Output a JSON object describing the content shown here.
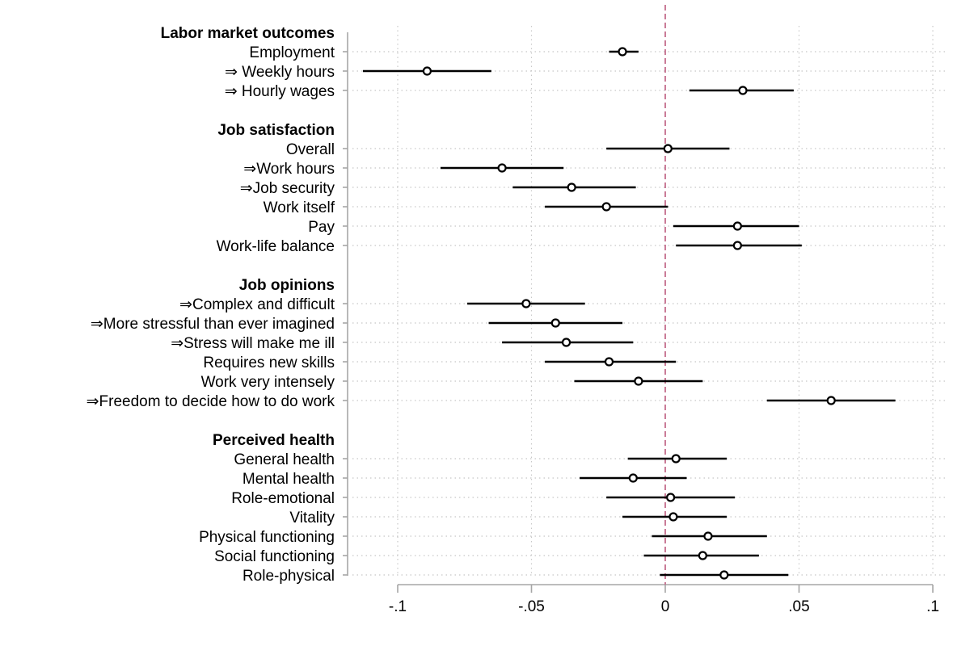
{
  "chart_data": {
    "type": "scatter",
    "title": "",
    "xlabel": "",
    "ylabel": "",
    "xlim": [
      -0.1,
      0.1
    ],
    "x_ticks": [
      {
        "value": -0.1,
        "label": "-.1"
      },
      {
        "value": -0.05,
        "label": "-.05"
      },
      {
        "value": 0,
        "label": "0"
      },
      {
        "value": 0.05,
        "label": ".05"
      },
      {
        "value": 0.1,
        "label": ".1"
      }
    ],
    "reference_line": {
      "x": 0,
      "color": "#c46e8c",
      "style": "dashed"
    },
    "grid": "vertical and horizontal dotted",
    "marker": "hollow circle",
    "rows": [
      {
        "kind": "header",
        "label": "Labor market outcomes"
      },
      {
        "kind": "item",
        "label": "Employment",
        "estimate": -0.016,
        "ci": [
          -0.021,
          -0.01
        ]
      },
      {
        "kind": "item",
        "label": "⇒ Weekly hours",
        "estimate": -0.089,
        "ci": [
          -0.113,
          -0.065
        ]
      },
      {
        "kind": "item",
        "label": "⇒ Hourly wages",
        "estimate": 0.029,
        "ci": [
          0.009,
          0.048
        ]
      },
      {
        "kind": "gap"
      },
      {
        "kind": "header",
        "label": "Job satisfaction"
      },
      {
        "kind": "item",
        "label": "Overall",
        "estimate": 0.001,
        "ci": [
          -0.022,
          0.024
        ]
      },
      {
        "kind": "item",
        "label": "⇒Work hours",
        "estimate": -0.061,
        "ci": [
          -0.084,
          -0.038
        ]
      },
      {
        "kind": "item",
        "label": "⇒Job security",
        "estimate": -0.035,
        "ci": [
          -0.057,
          -0.011
        ]
      },
      {
        "kind": "item",
        "label": "Work itself",
        "estimate": -0.022,
        "ci": [
          -0.045,
          0.001
        ]
      },
      {
        "kind": "item",
        "label": "Pay",
        "estimate": 0.027,
        "ci": [
          0.003,
          0.05
        ]
      },
      {
        "kind": "item",
        "label": "Work-life balance",
        "estimate": 0.027,
        "ci": [
          0.004,
          0.051
        ]
      },
      {
        "kind": "gap"
      },
      {
        "kind": "header",
        "label": "Job opinions"
      },
      {
        "kind": "item",
        "label": "⇒Complex and difficult",
        "estimate": -0.052,
        "ci": [
          -0.074,
          -0.03
        ]
      },
      {
        "kind": "item",
        "label": "⇒More stressful than ever imagined",
        "estimate": -0.041,
        "ci": [
          -0.066,
          -0.016
        ]
      },
      {
        "kind": "item",
        "label": "⇒Stress will make me ill",
        "estimate": -0.037,
        "ci": [
          -0.061,
          -0.012
        ]
      },
      {
        "kind": "item",
        "label": "Requires new skills",
        "estimate": -0.021,
        "ci": [
          -0.045,
          0.004
        ]
      },
      {
        "kind": "item",
        "label": "Work very intensely",
        "estimate": -0.01,
        "ci": [
          -0.034,
          0.014
        ]
      },
      {
        "kind": "item",
        "label": "⇒Freedom to decide how to do work",
        "estimate": 0.062,
        "ci": [
          0.038,
          0.086
        ]
      },
      {
        "kind": "gap"
      },
      {
        "kind": "header",
        "label": "Perceived health"
      },
      {
        "kind": "item",
        "label": "General health",
        "estimate": 0.004,
        "ci": [
          -0.014,
          0.023
        ]
      },
      {
        "kind": "item",
        "label": "Mental health",
        "estimate": -0.012,
        "ci": [
          -0.032,
          0.008
        ]
      },
      {
        "kind": "item",
        "label": "Role-emotional",
        "estimate": 0.002,
        "ci": [
          -0.022,
          0.026
        ]
      },
      {
        "kind": "item",
        "label": "Vitality",
        "estimate": 0.003,
        "ci": [
          -0.016,
          0.023
        ]
      },
      {
        "kind": "item",
        "label": "Physical functioning",
        "estimate": 0.016,
        "ci": [
          -0.005,
          0.038
        ]
      },
      {
        "kind": "item",
        "label": "Social functioning",
        "estimate": 0.014,
        "ci": [
          -0.008,
          0.035
        ]
      },
      {
        "kind": "item",
        "label": "Role-physical",
        "estimate": 0.022,
        "ci": [
          -0.002,
          0.046
        ]
      }
    ]
  }
}
